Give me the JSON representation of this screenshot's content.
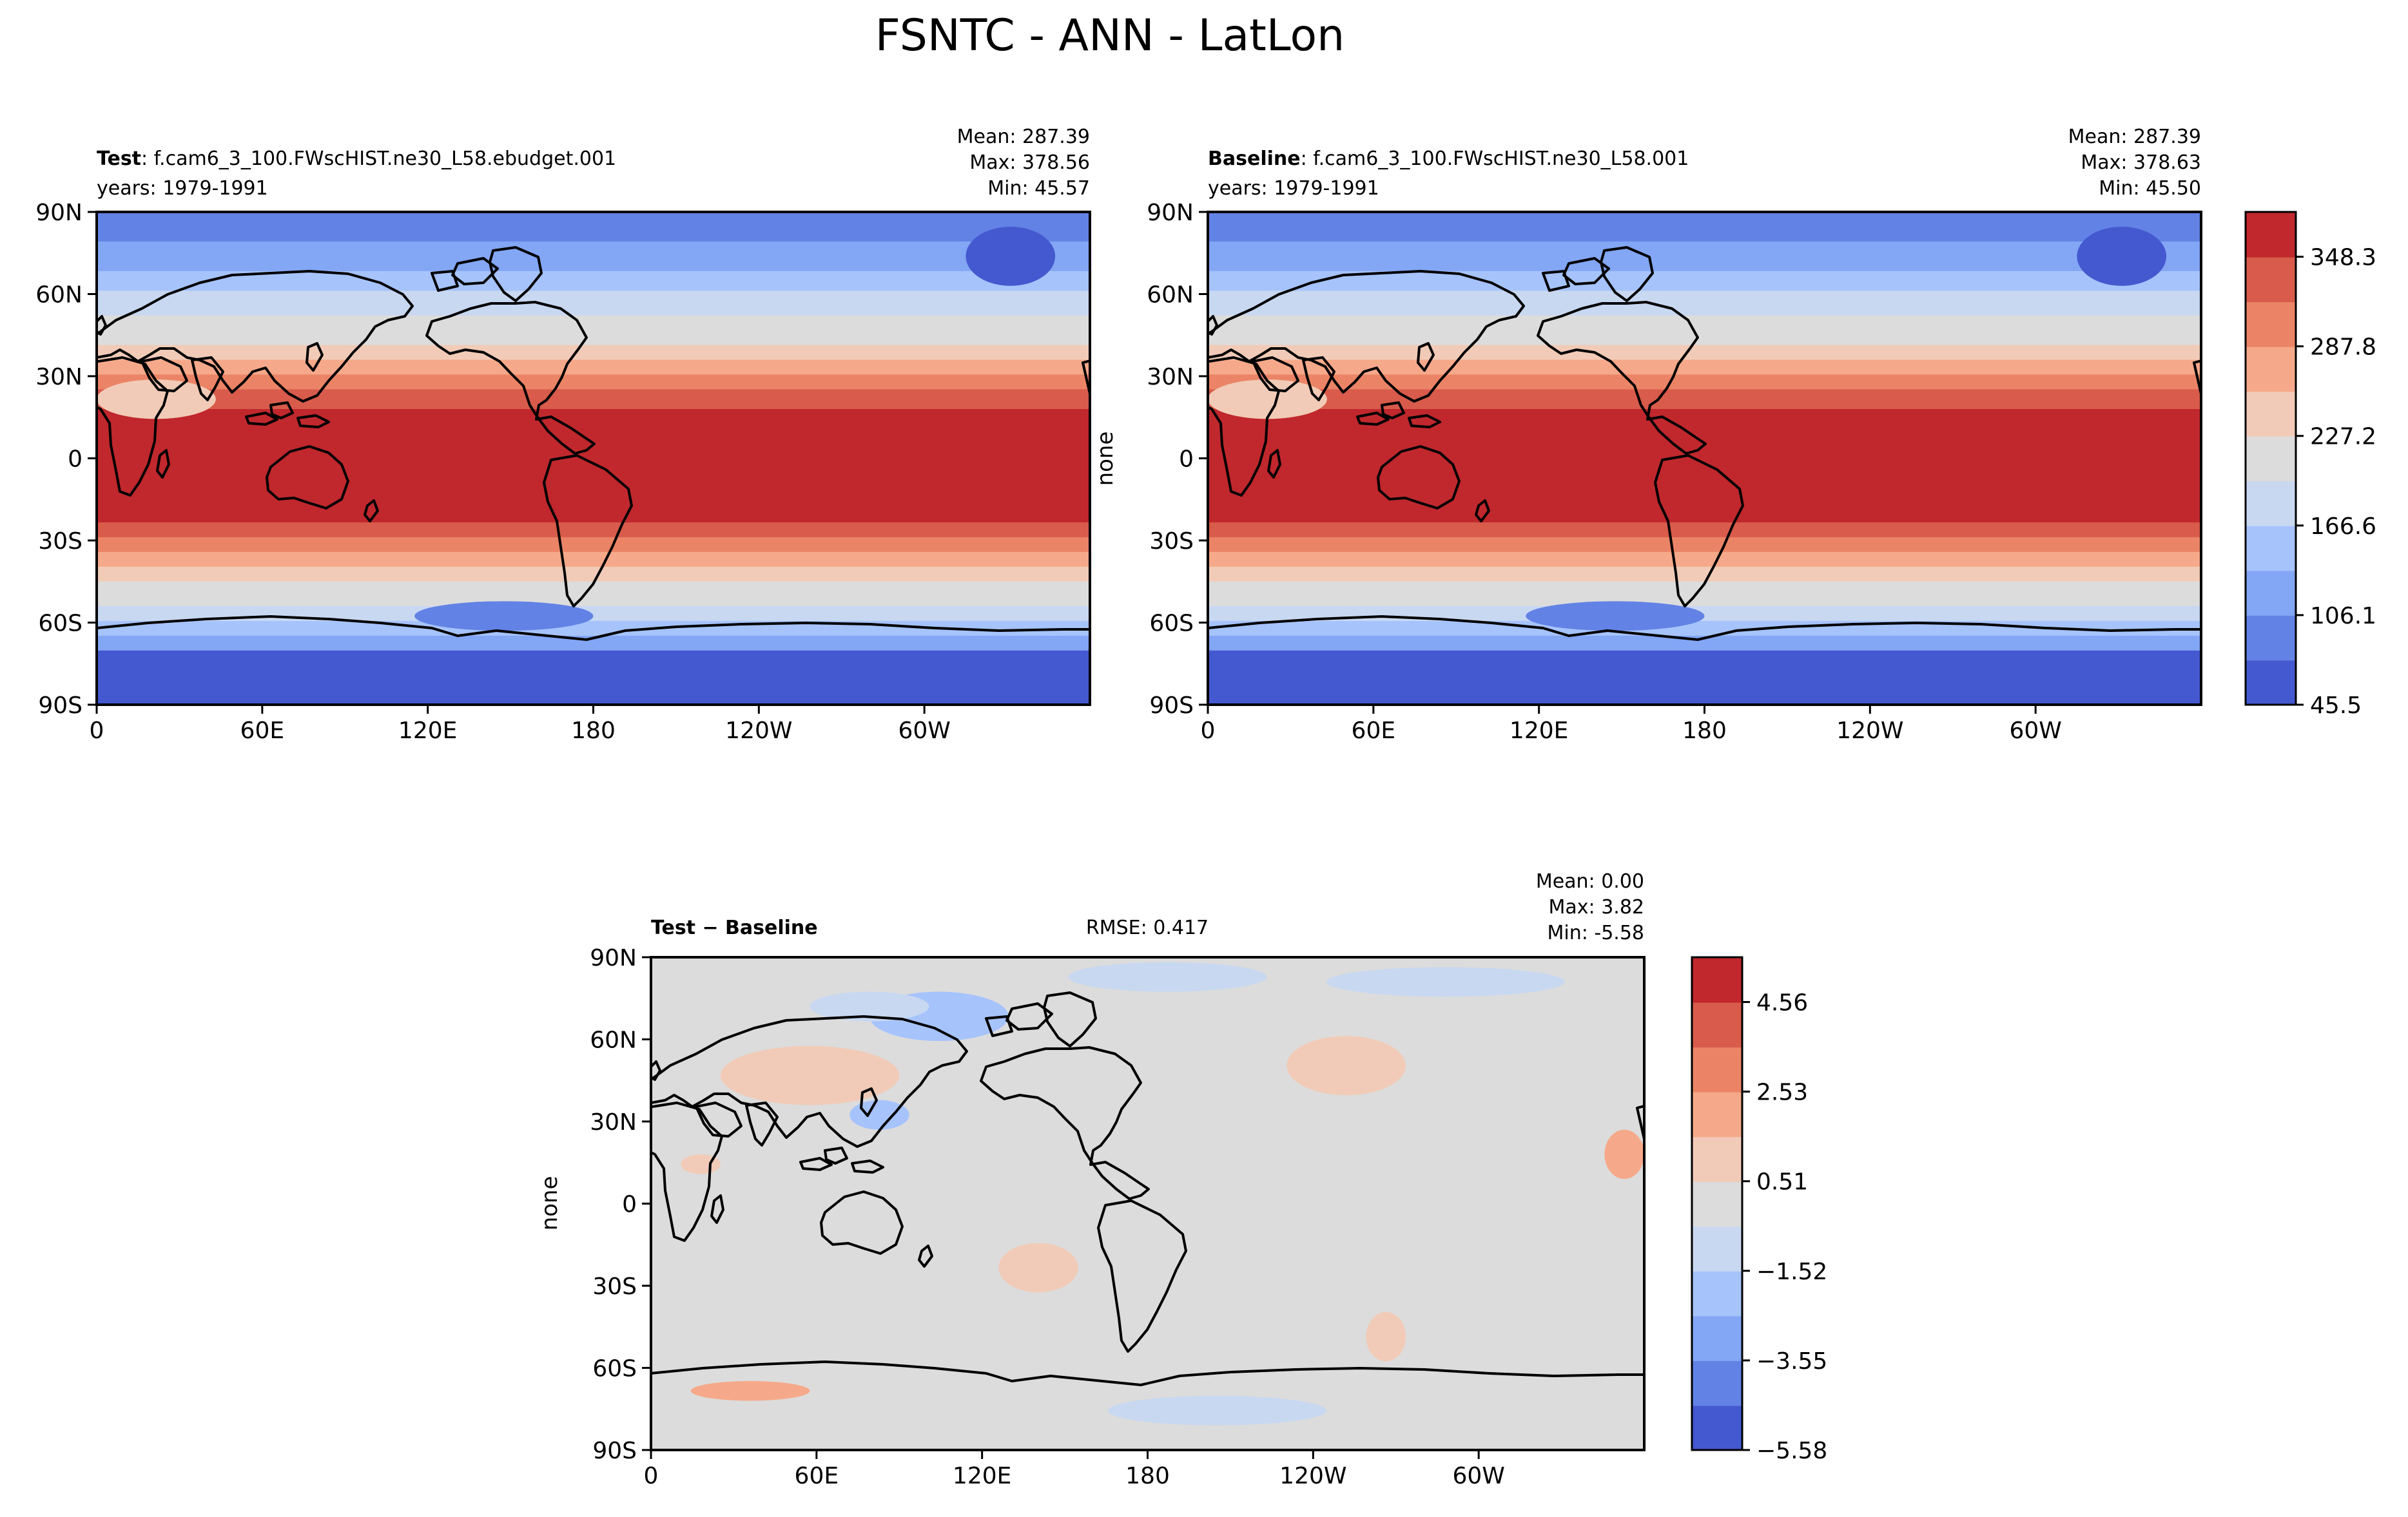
{
  "chart_data": {
    "suptitle": "FSNTC - ANN - LatLon",
    "type": "heatmap",
    "panels": [
      {
        "id": "test",
        "title_bold": "Test",
        "title_rest": ": f.cam6_3_100.FWscHIST.ne30_L58.ebudget.001",
        "subtitle": "years: 1979-1991",
        "stats": [
          "Mean: 287.39",
          "Max: 378.56",
          "Min: 45.57"
        ],
        "ylabel": "",
        "palette": "abs"
      },
      {
        "id": "baseline",
        "title_bold": "Baseline",
        "title_rest": ": f.cam6_3_100.FWscHIST.ne30_L58.001",
        "subtitle": "years: 1979-1991",
        "stats": [
          "Mean: 287.39",
          "Max: 378.63",
          "Min: 45.50"
        ],
        "ylabel": "none",
        "palette": "abs"
      },
      {
        "id": "diff",
        "title_bold": "Test − Baseline",
        "title_rest": "",
        "subtitle": "",
        "rmse": "RMSE: 0.417",
        "stats": [
          "Mean:  0.00",
          "Max:  3.82",
          "Min: -5.58"
        ],
        "ylabel": "none",
        "palette": "diff"
      }
    ],
    "x_ticks": [
      "0",
      "60E",
      "120E",
      "180",
      "120W",
      "60W"
    ],
    "y_ticks": [
      "90N",
      "60N",
      "30N",
      "0",
      "30S",
      "60S",
      "90S"
    ],
    "colorbar_abs": {
      "range": [
        45.5,
        378.56
      ],
      "ticks": [
        "45.5",
        "106.1",
        "166.6",
        "227.2",
        "287.8",
        "348.3"
      ],
      "colors": [
        "#4459cf",
        "#6282e5",
        "#83a6f5",
        "#a6c3fc",
        "#c8d8f1",
        "#dcdcdc",
        "#f1cbb7",
        "#f6a98a",
        "#eb8466",
        "#d85b4b",
        "#c0282d"
      ]
    },
    "colorbar_diff": {
      "range": [
        -5.58,
        5.58
      ],
      "ticks": [
        "−5.58",
        "−3.55",
        "−1.52",
        "0.51",
        "2.53",
        "4.56"
      ],
      "colors": [
        "#4459cf",
        "#6282e5",
        "#83a6f5",
        "#a6c3fc",
        "#c8d8f1",
        "#dcdcdc",
        "#f1cbb7",
        "#f6a98a",
        "#eb8466",
        "#d85b4b",
        "#c0282d"
      ]
    }
  }
}
